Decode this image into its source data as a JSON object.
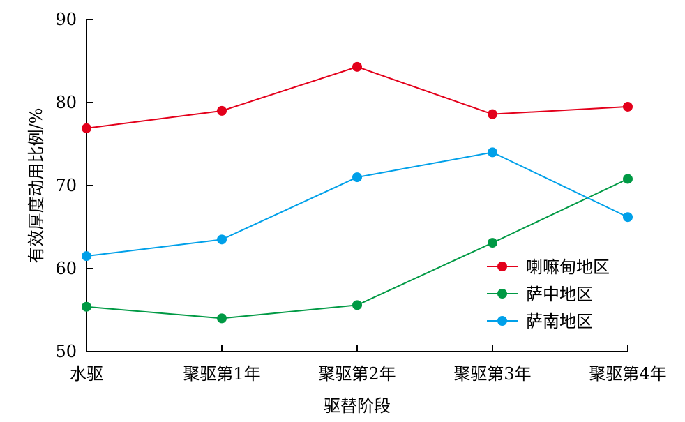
{
  "chart_data": {
    "type": "line",
    "title": "",
    "xlabel": "驱替阶段",
    "ylabel": "有效厚度动用比例/%",
    "categories": [
      "水驱",
      "聚驱第1年",
      "聚驱第2年",
      "聚驱第3年",
      "聚驱第4年"
    ],
    "ylim": [
      50,
      90
    ],
    "yticks": [
      50,
      60,
      70,
      80,
      90
    ],
    "grid": false,
    "legend_position": "right",
    "series": [
      {
        "name": "喇嘛甸地区",
        "color": "#e3001b",
        "values": [
          76.9,
          79.0,
          84.3,
          78.6,
          79.5
        ]
      },
      {
        "name": "萨中地区",
        "color": "#009944",
        "values": [
          55.4,
          54.0,
          55.6,
          63.1,
          70.8
        ]
      },
      {
        "name": "萨南地区",
        "color": "#00a0e9",
        "values": [
          61.5,
          63.5,
          71.0,
          74.0,
          66.2
        ]
      }
    ]
  }
}
